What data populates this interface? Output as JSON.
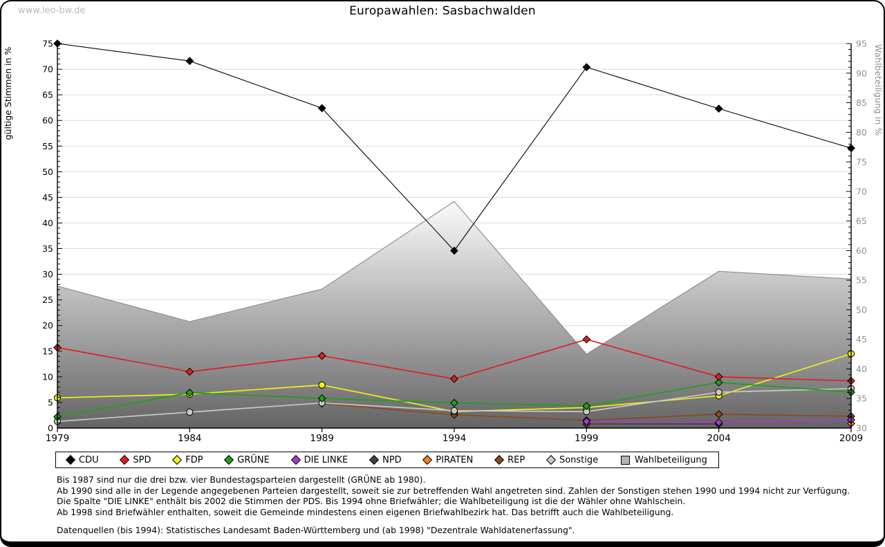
{
  "page": {
    "watermark": "www.leo-bw.de",
    "title": "Europawahlen: Sasbachwalden"
  },
  "chart_data": {
    "type": "line",
    "title": "Europawahlen: Sasbachwalden",
    "x": [
      "1979",
      "1984",
      "1989",
      "1994",
      "1999",
      "2004",
      "2009"
    ],
    "left_axis": {
      "label": "gültige Stimmen in %",
      "min": 0,
      "max": 75,
      "tick_step": 5
    },
    "right_axis": {
      "label": "Wahlbeteiligung in %",
      "min": 30,
      "max": 95,
      "tick_step": 5
    },
    "grid": true,
    "legend_position": "bottom",
    "area_series": {
      "name": "Wahlbeteiligung",
      "axis": "right",
      "values": [
        54.0,
        48.0,
        53.5,
        68.3,
        42.5,
        56.5,
        55.2
      ],
      "fill_top": "#fbfbfb",
      "fill_bottom": "#646464",
      "outline": "#8f8f8f",
      "legend_swatch": "#b4b4b4"
    },
    "series": [
      {
        "name": "CDU",
        "color": "#000000",
        "marker": "diamond",
        "axis": "left",
        "values": [
          75.0,
          71.6,
          62.4,
          34.6,
          70.4,
          62.3,
          54.6
        ]
      },
      {
        "name": "SPD",
        "color": "#dd2020",
        "marker": "diamond",
        "axis": "left",
        "values": [
          15.7,
          11.0,
          14.1,
          9.6,
          17.3,
          10.0,
          9.2
        ]
      },
      {
        "name": "FDP",
        "color": "#f2ee1b",
        "marker": "circle",
        "axis": "left",
        "values": [
          5.9,
          6.6,
          8.4,
          3.2,
          4.0,
          6.3,
          14.5
        ]
      },
      {
        "name": "GRÜNE",
        "color": "#1ca11c",
        "marker": "diamond",
        "axis": "left",
        "values": [
          2.2,
          6.9,
          5.8,
          4.9,
          4.3,
          8.9,
          7.0
        ]
      },
      {
        "name": "DIE LINKE",
        "color": "#a43bd6",
        "marker": "diamond",
        "axis": "left",
        "values": [
          null,
          null,
          null,
          null,
          1.3,
          1.1,
          1.6
        ]
      },
      {
        "name": "NPD",
        "color": "#4a4036",
        "marker": "diamond",
        "axis": "left",
        "values": [
          null,
          null,
          null,
          null,
          0.8,
          0.8,
          null
        ]
      },
      {
        "name": "PIRATEN",
        "color": "#ee8420",
        "marker": "diamond",
        "axis": "left",
        "values": [
          null,
          null,
          null,
          null,
          null,
          null,
          0.9
        ]
      },
      {
        "name": "REP",
        "color": "#8c4a1e",
        "marker": "diamond",
        "axis": "left",
        "values": [
          null,
          null,
          4.8,
          2.6,
          1.5,
          2.7,
          2.3
        ]
      },
      {
        "name": "Sonstige",
        "color": "#c9c9c9",
        "marker": "circle",
        "axis": "left",
        "values": [
          1.3,
          3.1,
          4.9,
          3.4,
          3.2,
          7.0,
          7.7
        ]
      }
    ]
  },
  "footnotes": {
    "lines": [
      "Bis 1987 sind nur die drei bzw. vier Bundestagsparteien dargestellt (GRÜNE ab 1980).",
      "Ab 1990 sind alle in der Legende angegebenen Parteien dargestellt, soweit sie zur betreffenden Wahl angetreten sind. Zahlen der Sonstigen stehen 1990 und 1994 nicht zur Verfügung.",
      "Die Spalte \"DIE LINKE\" enthält bis 2002 die Stimmen der PDS. Bis 1994 ohne Briefwähler; die Wahlbeteiligung ist die der Wähler ohne Wahlschein.",
      "Ab 1998 sind Briefwähler enthalten, soweit die Gemeinde mindestens einen eigenen Briefwahlbezirk hat. Das betrifft auch die Wahlbeteiligung."
    ],
    "source": "Datenquellen (bis 1994): Statistisches Landesamt Baden-Württemberg und (ab 1998) \"Dezentrale Wahldatenerfassung\"."
  }
}
